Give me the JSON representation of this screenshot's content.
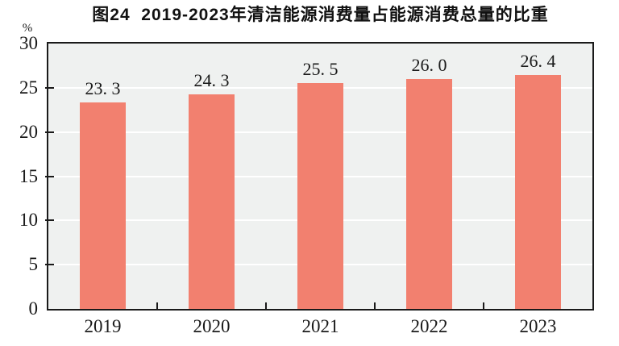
{
  "page": {
    "background": "#ffffff"
  },
  "chart_data": {
    "type": "bar",
    "title": "图24  2019-2023年清洁能源消费量占能源消费总量的比重",
    "y_unit": "%",
    "categories": [
      "2019",
      "2020",
      "2021",
      "2022",
      "2023"
    ],
    "values": [
      23.3,
      24.3,
      25.5,
      26.0,
      26.4
    ],
    "value_labels": [
      "23. 3",
      "24. 3",
      "25. 5",
      "26. 0",
      "26. 4"
    ],
    "xlabel": "",
    "ylabel": "",
    "ylim": [
      0,
      30
    ],
    "yticks": [
      0,
      5,
      10,
      15,
      20,
      25,
      30
    ],
    "grid": true,
    "legend": "none",
    "colors": {
      "bar_fill": "#f2806f",
      "plot_background": "#eff1f0",
      "gridline": "#ffffff",
      "axis_line": "#1a1a1a",
      "text": "#1a1a1a"
    }
  }
}
